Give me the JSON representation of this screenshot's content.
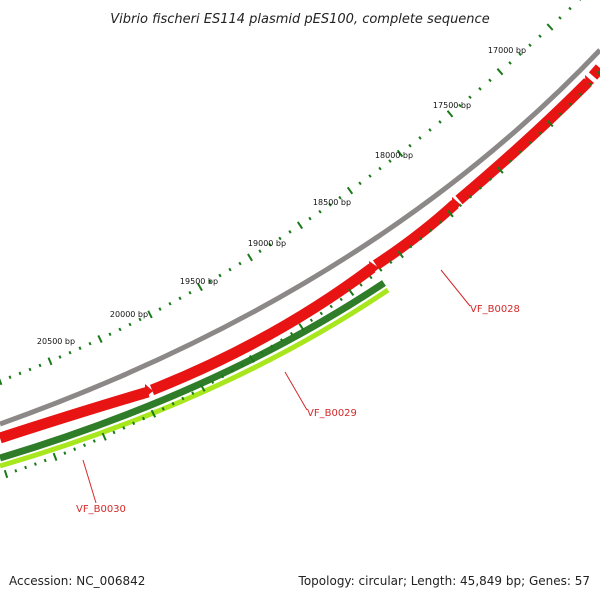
{
  "title": "Vibrio fischeri ES114 plasmid pES100, complete sequence",
  "accession_text": "Accession: NC_006842",
  "summary_text": "Topology: circular; Length: 45,849 bp; Genes: 57",
  "scale_ticks": [
    {
      "bp": 17000,
      "label": "17000 bp"
    },
    {
      "bp": 17500,
      "label": "17500 bp"
    },
    {
      "bp": 18000,
      "label": "18000 bp"
    },
    {
      "bp": 18500,
      "label": "18500 bp"
    },
    {
      "bp": 19000,
      "label": "19000 bp"
    },
    {
      "bp": 19500,
      "label": "19500 bp"
    },
    {
      "bp": 20000,
      "label": "20000 bp"
    },
    {
      "bp": 20500,
      "label": "20500 bp"
    }
  ],
  "gene_labels": [
    {
      "name": "VF_B0028",
      "color": "#d42a2a"
    },
    {
      "name": "VF_B0029",
      "color": "#d42a2a"
    },
    {
      "name": "VF_B0030",
      "color": "#d42a2a"
    }
  ],
  "colors": {
    "backbone": "#8c8888",
    "forward_genes": "#e81414",
    "reverse_gene_dark": "#2f7d28",
    "reverse_gene_light": "#a8e61e",
    "scale_ticks": "#1a7a1a"
  }
}
